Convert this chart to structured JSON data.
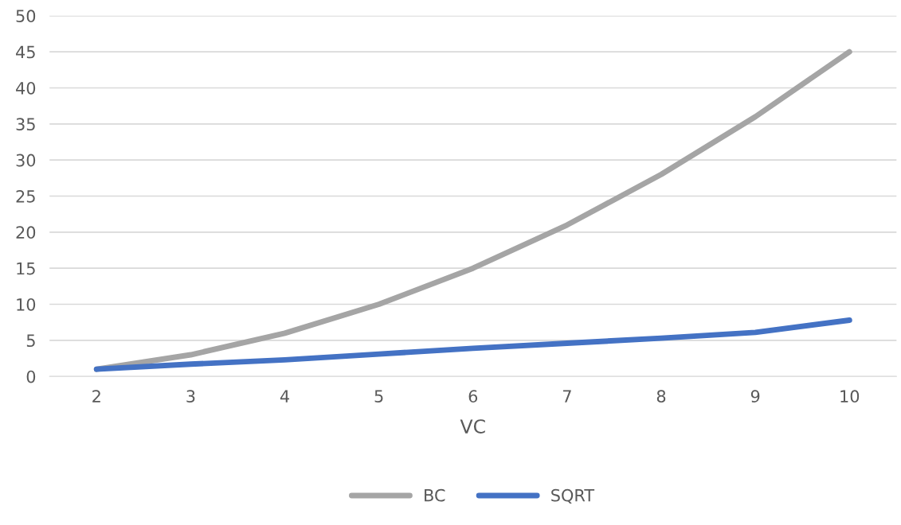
{
  "chart_data": {
    "type": "line",
    "xlabel": "VC",
    "categories": [
      "2",
      "3",
      "4",
      "5",
      "6",
      "7",
      "8",
      "9",
      "10"
    ],
    "series": [
      {
        "name": "BC",
        "color": "#a5a5a5",
        "values": [
          1,
          3,
          6,
          10,
          15,
          21,
          28,
          36,
          45
        ]
      },
      {
        "name": "SQRT",
        "color": "#4472c4",
        "values": [
          1.0,
          1.7,
          2.3,
          3.1,
          3.9,
          4.6,
          5.3,
          6.1,
          7.8
        ]
      }
    ],
    "ylim": [
      0,
      50
    ],
    "yticks": [
      0,
      5,
      10,
      15,
      20,
      25,
      30,
      35,
      40,
      45,
      50
    ],
    "grid": "y",
    "legend": "bottom",
    "marker": "none",
    "line_style": "solid"
  }
}
